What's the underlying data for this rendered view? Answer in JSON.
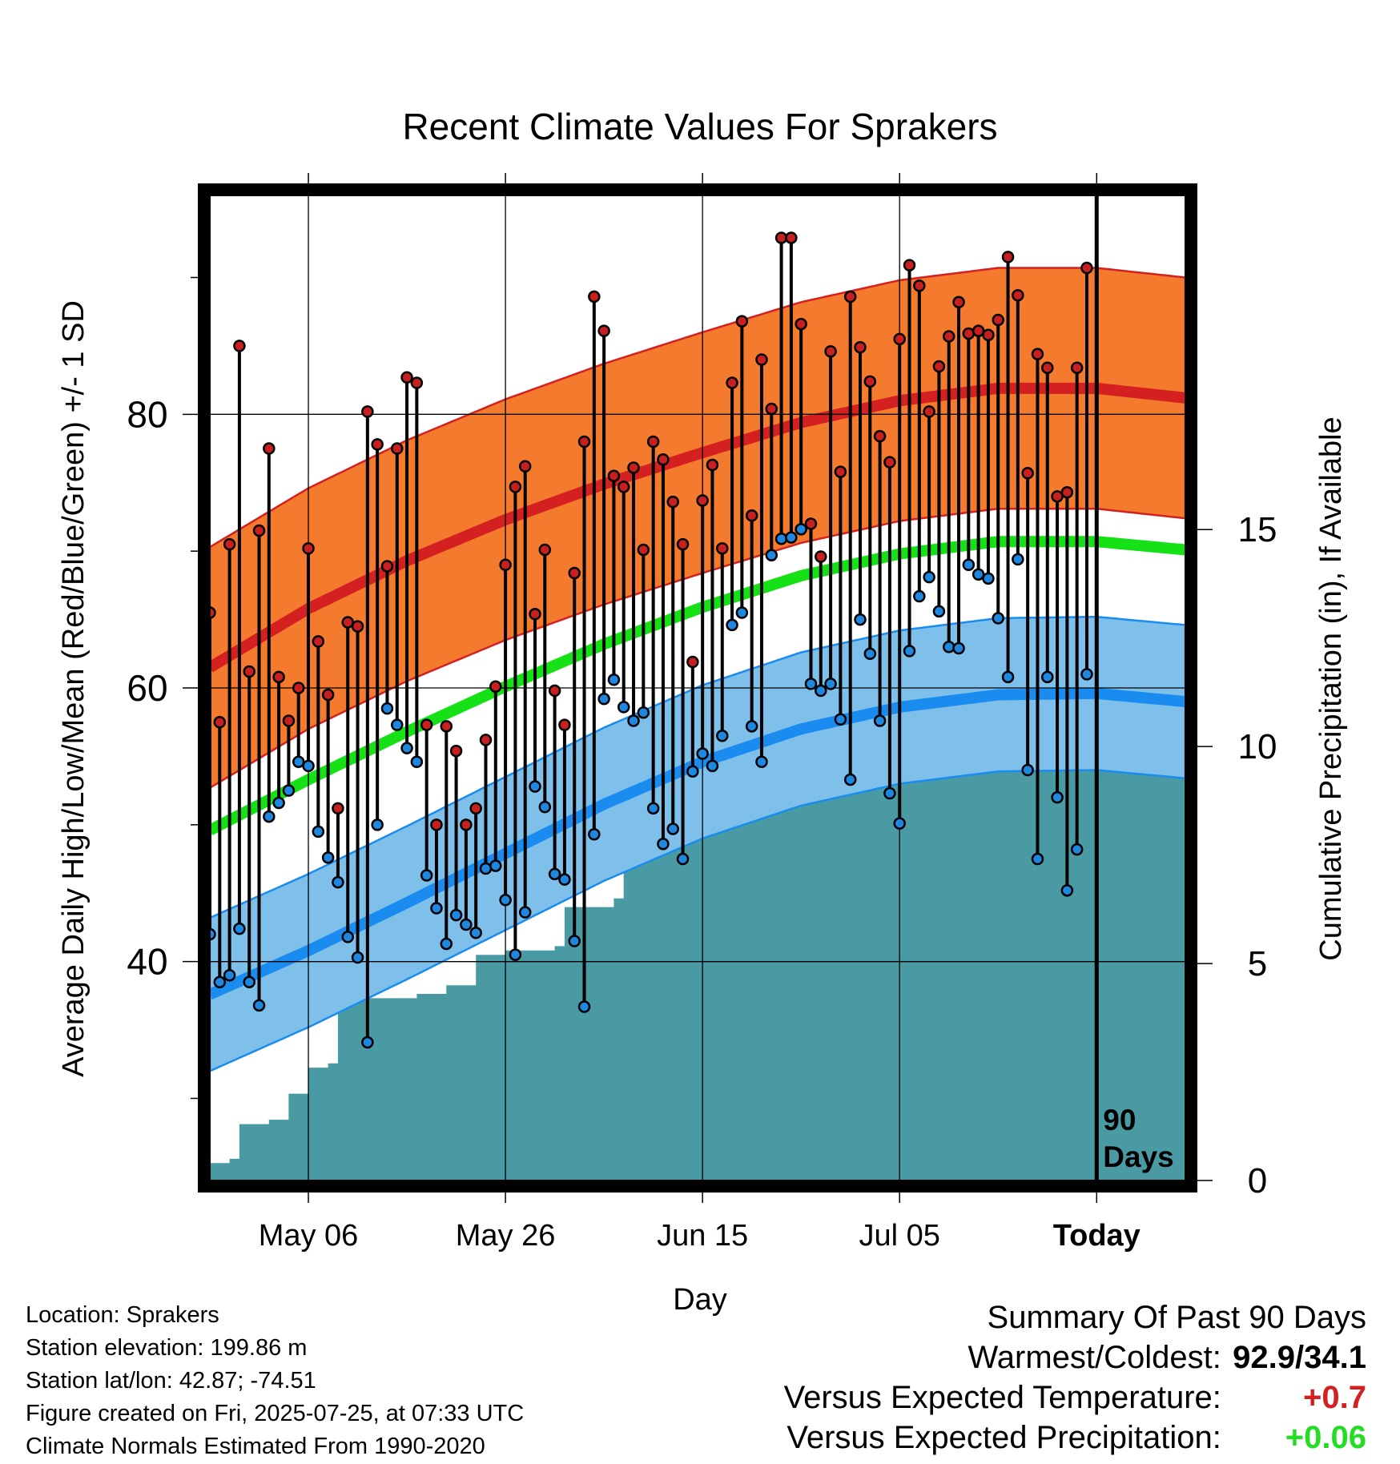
{
  "chart_data": {
    "type": "line",
    "title": "Recent Climate Values For Sprakers",
    "xlabel": "Day",
    "ylabel_left": "Average Daily High/Low/Mean (Red/Blue/Green) +/- 1 SD",
    "ylabel_right": "Cumulative Precipitation (in), If Available",
    "x_tick_labels": [
      "May 06",
      "May 26",
      "Jun 15",
      "Jul 05",
      "Today"
    ],
    "x_tick_days": [
      10,
      30,
      50,
      70,
      90
    ],
    "x_range_days": [
      0,
      99
    ],
    "ylim_left": [
      24,
      96
    ],
    "y_ticks_left": [
      40,
      60,
      80
    ],
    "ylim_right": [
      0,
      22.7
    ],
    "y_ticks_right": [
      0,
      5,
      10,
      15
    ],
    "today_label": "90 Days",
    "normal_high_mean": [
      {
        "day": 0,
        "value": 61.5
      },
      {
        "day": 10,
        "value": 65.8
      },
      {
        "day": 20,
        "value": 69.3
      },
      {
        "day": 30,
        "value": 72.3
      },
      {
        "day": 40,
        "value": 74.9
      },
      {
        "day": 50,
        "value": 77.2
      },
      {
        "day": 60,
        "value": 79.4
      },
      {
        "day": 70,
        "value": 81.0
      },
      {
        "day": 80,
        "value": 81.9
      },
      {
        "day": 90,
        "value": 81.9
      },
      {
        "day": 99,
        "value": 81.2
      }
    ],
    "high_sd": 8.8,
    "normal_low_mean": [
      {
        "day": 0,
        "value": 37.6
      },
      {
        "day": 10,
        "value": 40.8
      },
      {
        "day": 20,
        "value": 44.3
      },
      {
        "day": 30,
        "value": 47.9
      },
      {
        "day": 40,
        "value": 51.5
      },
      {
        "day": 50,
        "value": 54.6
      },
      {
        "day": 60,
        "value": 57.0
      },
      {
        "day": 70,
        "value": 58.6
      },
      {
        "day": 80,
        "value": 59.5
      },
      {
        "day": 90,
        "value": 59.6
      },
      {
        "day": 99,
        "value": 59.0
      }
    ],
    "low_sd": 5.6,
    "normal_mean": [
      {
        "day": 0,
        "value": 49.6
      },
      {
        "day": 10,
        "value": 53.3
      },
      {
        "day": 20,
        "value": 56.8
      },
      {
        "day": 30,
        "value": 60.1
      },
      {
        "day": 40,
        "value": 63.2
      },
      {
        "day": 50,
        "value": 65.9
      },
      {
        "day": 60,
        "value": 68.2
      },
      {
        "day": 70,
        "value": 69.8
      },
      {
        "day": 80,
        "value": 70.7
      },
      {
        "day": 90,
        "value": 70.7
      },
      {
        "day": 99,
        "value": 70.1
      }
    ],
    "daily": [
      {
        "day": 0,
        "high": 65.5,
        "low": 42.0
      },
      {
        "day": 1,
        "high": 57.5,
        "low": 38.5
      },
      {
        "day": 2,
        "high": 70.5,
        "low": 39.0
      },
      {
        "day": 3,
        "high": 85.0,
        "low": 42.4
      },
      {
        "day": 4,
        "high": 61.2,
        "low": 38.5
      },
      {
        "day": 5,
        "high": 71.5,
        "low": 36.8
      },
      {
        "day": 6,
        "high": 77.5,
        "low": 50.6
      },
      {
        "day": 7,
        "high": 60.8,
        "low": 51.6
      },
      {
        "day": 8,
        "high": 57.6,
        "low": 52.5
      },
      {
        "day": 9,
        "high": 60.0,
        "low": 54.6
      },
      {
        "day": 10,
        "high": 70.2,
        "low": 54.3
      },
      {
        "day": 11,
        "high": 63.4,
        "low": 49.5
      },
      {
        "day": 12,
        "high": 59.5,
        "low": 47.6
      },
      {
        "day": 13,
        "high": 51.2,
        "low": 45.8
      },
      {
        "day": 14,
        "high": 64.8,
        "low": 41.8
      },
      {
        "day": 15,
        "high": 64.5,
        "low": 40.3
      },
      {
        "day": 16,
        "high": 80.2,
        "low": 34.1
      },
      {
        "day": 17,
        "high": 77.8,
        "low": 50.0
      },
      {
        "day": 18,
        "high": 68.9,
        "low": 58.5
      },
      {
        "day": 19,
        "high": 77.5,
        "low": 57.3
      },
      {
        "day": 20,
        "high": 82.7,
        "low": 55.6
      },
      {
        "day": 21,
        "high": 82.3,
        "low": 54.6
      },
      {
        "day": 22,
        "high": 57.3,
        "low": 46.3
      },
      {
        "day": 23,
        "high": 50.0,
        "low": 43.9
      },
      {
        "day": 24,
        "high": 57.2,
        "low": 41.3
      },
      {
        "day": 25,
        "high": 55.4,
        "low": 43.4
      },
      {
        "day": 26,
        "high": 50.0,
        "low": 42.7
      },
      {
        "day": 27,
        "high": 51.2,
        "low": 42.1
      },
      {
        "day": 28,
        "high": 56.2,
        "low": 46.8
      },
      {
        "day": 29,
        "high": 60.1,
        "low": 47.0
      },
      {
        "day": 30,
        "high": 69.0,
        "low": 44.5
      },
      {
        "day": 31,
        "high": 74.7,
        "low": 40.5
      },
      {
        "day": 32,
        "high": 76.2,
        "low": 43.6
      },
      {
        "day": 33,
        "high": 65.4,
        "low": 52.8
      },
      {
        "day": 34,
        "high": 70.1,
        "low": 51.3
      },
      {
        "day": 35,
        "high": 59.8,
        "low": 46.4
      },
      {
        "day": 36,
        "high": 57.3,
        "low": 46.0
      },
      {
        "day": 37,
        "high": 68.4,
        "low": 41.5
      },
      {
        "day": 38,
        "high": 78.0,
        "low": 36.7
      },
      {
        "day": 39,
        "high": 88.6,
        "low": 49.3
      },
      {
        "day": 40,
        "high": 86.1,
        "low": 59.2
      },
      {
        "day": 41,
        "high": 75.5,
        "low": 60.6
      },
      {
        "day": 42,
        "high": 74.7,
        "low": 58.6
      },
      {
        "day": 43,
        "high": 76.1,
        "low": 57.6
      },
      {
        "day": 44,
        "high": 70.1,
        "low": 58.2
      },
      {
        "day": 45,
        "high": 78.0,
        "low": 51.2
      },
      {
        "day": 46,
        "high": 76.7,
        "low": 48.6
      },
      {
        "day": 47,
        "high": 73.6,
        "low": 49.7
      },
      {
        "day": 48,
        "high": 70.5,
        "low": 47.5
      },
      {
        "day": 49,
        "high": 61.9,
        "low": 53.9
      },
      {
        "day": 50,
        "high": 73.7,
        "low": 55.2
      },
      {
        "day": 51,
        "high": 76.3,
        "low": 54.3
      },
      {
        "day": 52,
        "high": 70.2,
        "low": 56.5
      },
      {
        "day": 53,
        "high": 82.3,
        "low": 64.6
      },
      {
        "day": 54,
        "high": 86.8,
        "low": 65.5
      },
      {
        "day": 55,
        "high": 72.6,
        "low": 57.2
      },
      {
        "day": 56,
        "high": 84.0,
        "low": 54.6
      },
      {
        "day": 57,
        "high": 80.4,
        "low": 69.7
      },
      {
        "day": 58,
        "high": 92.9,
        "low": 70.9
      },
      {
        "day": 59,
        "high": 92.9,
        "low": 71.0
      },
      {
        "day": 60,
        "high": 86.6,
        "low": 71.6
      },
      {
        "day": 61,
        "high": 72.0,
        "low": 60.3
      },
      {
        "day": 62,
        "high": 69.6,
        "low": 59.8
      },
      {
        "day": 63,
        "high": 84.6,
        "low": 60.3
      },
      {
        "day": 64,
        "high": 75.8,
        "low": 57.7
      },
      {
        "day": 65,
        "high": 88.6,
        "low": 53.3
      },
      {
        "day": 66,
        "high": 84.9,
        "low": 65.0
      },
      {
        "day": 67,
        "high": 82.4,
        "low": 62.5
      },
      {
        "day": 68,
        "high": 78.4,
        "low": 57.6
      },
      {
        "day": 69,
        "high": 76.5,
        "low": 52.3
      },
      {
        "day": 70,
        "high": 85.5,
        "low": 50.1
      },
      {
        "day": 71,
        "high": 90.9,
        "low": 62.7
      },
      {
        "day": 72,
        "high": 89.4,
        "low": 66.7
      },
      {
        "day": 73,
        "high": 80.2,
        "low": 68.1
      },
      {
        "day": 74,
        "high": 83.5,
        "low": 65.6
      },
      {
        "day": 75,
        "high": 85.7,
        "low": 63.0
      },
      {
        "day": 76,
        "high": 88.2,
        "low": 62.9
      },
      {
        "day": 77,
        "high": 85.9,
        "low": 69.0
      },
      {
        "day": 78,
        "high": 86.1,
        "low": 68.3
      },
      {
        "day": 79,
        "high": 85.8,
        "low": 68.0
      },
      {
        "day": 80,
        "high": 86.9,
        "low": 65.1
      },
      {
        "day": 81,
        "high": 91.5,
        "low": 60.8
      },
      {
        "day": 82,
        "high": 88.7,
        "low": 69.4
      },
      {
        "day": 83,
        "high": 75.7,
        "low": 54.0
      },
      {
        "day": 84,
        "high": 84.4,
        "low": 47.5
      },
      {
        "day": 85,
        "high": 83.4,
        "low": 60.8
      },
      {
        "day": 86,
        "high": 74.0,
        "low": 52.0
      },
      {
        "day": 87,
        "high": 74.3,
        "low": 45.2
      },
      {
        "day": 88,
        "high": 83.4,
        "low": 48.2
      },
      {
        "day": 89,
        "high": 90.7,
        "low": 61.0
      }
    ],
    "cumulative_precip": [
      {
        "day": 0,
        "value": 0.4
      },
      {
        "day": 2,
        "value": 0.5
      },
      {
        "day": 3,
        "value": 1.3
      },
      {
        "day": 6,
        "value": 1.4
      },
      {
        "day": 8,
        "value": 2.0
      },
      {
        "day": 10,
        "value": 2.6
      },
      {
        "day": 12,
        "value": 2.7
      },
      {
        "day": 13,
        "value": 4.2
      },
      {
        "day": 21,
        "value": 4.3
      },
      {
        "day": 24,
        "value": 4.5
      },
      {
        "day": 27,
        "value": 5.2
      },
      {
        "day": 30,
        "value": 5.3
      },
      {
        "day": 35,
        "value": 5.4
      },
      {
        "day": 36,
        "value": 6.3
      },
      {
        "day": 41,
        "value": 6.5
      },
      {
        "day": 42,
        "value": 8.7
      },
      {
        "day": 44,
        "value": 9.3
      },
      {
        "day": 48,
        "value": 9.4
      },
      {
        "day": 54,
        "value": 9.6
      },
      {
        "day": 58,
        "value": 9.7
      },
      {
        "day": 61,
        "value": 9.8
      },
      {
        "day": 66,
        "value": 10.0
      },
      {
        "day": 68,
        "value": 10.1
      },
      {
        "day": 76,
        "value": 10.2
      },
      {
        "day": 77,
        "value": 11.0
      },
      {
        "day": 83,
        "value": 11.1
      },
      {
        "day": 85,
        "value": 11.6
      },
      {
        "day": 99,
        "value": 11.6
      }
    ],
    "colors": {
      "high_band": "#f47a2e",
      "high_line": "#d42020",
      "low_band": "#7fc0ea",
      "low_line": "#1a8cf0",
      "mean_line": "#16e016",
      "precip_fill": "#4a9aa4",
      "high_marker": "#c8201e",
      "low_marker": "#1e88e0"
    }
  },
  "info": {
    "location": "Location: Sprakers",
    "elevation": "Station elevation: 199.86 m",
    "latlon": "Station lat/lon: 42.87; -74.51",
    "created": "Figure created on Fri, 2025-07-25, at 07:33 UTC",
    "normals": "Climate Normals Estimated From 1990-2020"
  },
  "summary": {
    "heading": "Summary Of Past 90 Days",
    "warmest_label": "Warmest/Coldest:",
    "warmest_value": "92.9/34.1",
    "temp_label": "Versus Expected Temperature:",
    "temp_value": "+0.7",
    "precip_label": "Versus Expected Precipitation:",
    "precip_value": "+0.06"
  }
}
